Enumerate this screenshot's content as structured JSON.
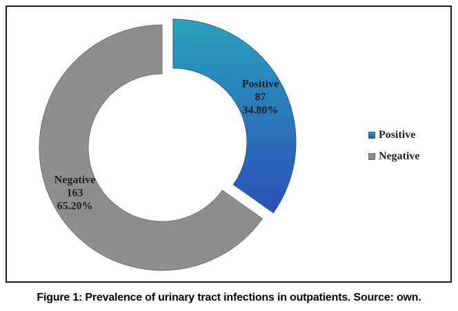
{
  "chart_data": {
    "type": "pie",
    "variant": "donut",
    "categories": [
      "Positive",
      "Negative"
    ],
    "values": [
      87,
      163
    ],
    "percentages": [
      "34.80%",
      "65.20%"
    ],
    "colors": {
      "Positive": {
        "top": "#2aa2bd",
        "bottom": "#2b4fb8",
        "stroke": "#1f5f82"
      },
      "Negative": {
        "fill": "#8e8e8e",
        "stroke": "#6e6e6e"
      }
    },
    "legend": {
      "placement": "right",
      "entries": [
        "Positive",
        "Negative"
      ]
    },
    "exploded": true
  },
  "caption": "Figure 1: Prevalence of urinary tract infections in outpatients. Source: own."
}
